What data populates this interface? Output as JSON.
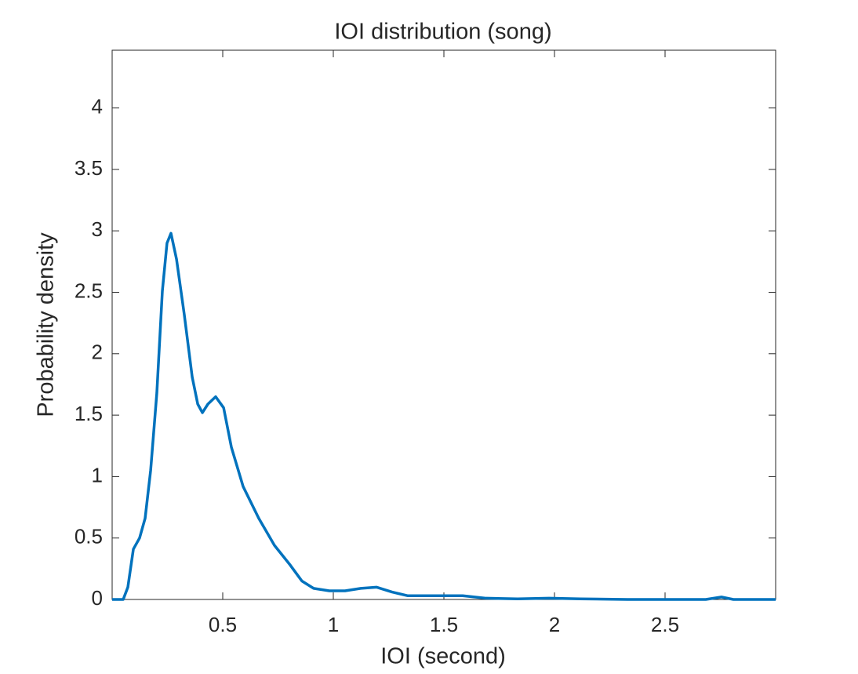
{
  "chart_data": {
    "type": "line",
    "title": "IOI distribution (song)",
    "xlabel": "IOI (second)",
    "ylabel": "Probability density",
    "color": "#0072bd",
    "x": [
      0,
      0.05,
      0.071,
      0.096,
      0.124,
      0.149,
      0.174,
      0.202,
      0.227,
      0.248,
      0.266,
      0.291,
      0.326,
      0.362,
      0.387,
      0.408,
      0.433,
      0.468,
      0.504,
      0.539,
      0.592,
      0.663,
      0.734,
      0.805,
      0.858,
      0.911,
      0.982,
      1.053,
      1.124,
      1.195,
      1.266,
      1.337,
      1.479,
      1.585,
      1.691,
      1.833,
      1.975,
      2.117,
      2.33,
      2.684,
      2.755,
      2.809,
      3
    ],
    "values": [
      0,
      0,
      0.1,
      0.41,
      0.5,
      0.66,
      1.05,
      1.68,
      2.51,
      2.9,
      2.98,
      2.77,
      2.32,
      1.81,
      1.59,
      1.52,
      1.59,
      1.65,
      1.56,
      1.24,
      0.92,
      0.66,
      0.44,
      0.28,
      0.15,
      0.09,
      0.07,
      0.07,
      0.09,
      0.1,
      0.06,
      0.03,
      0.03,
      0.03,
      0.01,
      0.005,
      0.01,
      0.005,
      0,
      0,
      0.02,
      0,
      0
    ],
    "xlim": [
      0,
      3
    ],
    "ylim": [
      0,
      4.47
    ],
    "xticks": [
      0.5,
      1,
      1.5,
      2,
      2.5
    ],
    "yticks": [
      0,
      0.5,
      1,
      1.5,
      2,
      2.5,
      3,
      3.5,
      4
    ]
  }
}
